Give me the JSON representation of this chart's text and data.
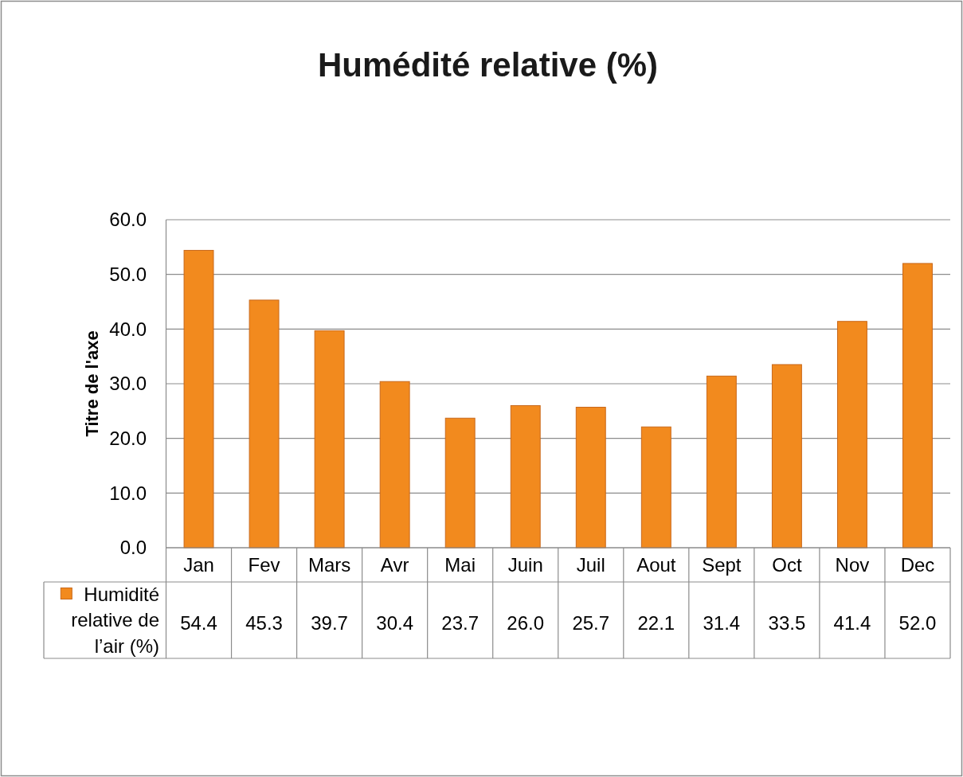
{
  "chart_data": {
    "type": "bar",
    "title": "Humédité relative (%)",
    "ylabel": "Titre de l'axe",
    "categories": [
      "Jan",
      "Fev",
      "Mars",
      "Avr",
      "Mai",
      "Juin",
      "Juil",
      "Aout",
      "Sept",
      "Oct",
      "Nov",
      "Dec"
    ],
    "series": [
      {
        "name": "Humidité relative de l’air (%)",
        "color": "#f28a1e",
        "values": [
          54.4,
          45.3,
          39.7,
          30.4,
          23.7,
          26.0,
          25.7,
          22.1,
          31.4,
          33.5,
          41.4,
          52.0
        ],
        "value_labels": [
          "54.4",
          "45.3",
          "39.7",
          "30.4",
          "23.7",
          "26.0",
          "25.7",
          "22.1",
          "31.4",
          "33.5",
          "41.4",
          "52.0"
        ]
      }
    ],
    "ylim": [
      0,
      60
    ],
    "yticks": [
      {
        "value": 0,
        "label": "0.0"
      },
      {
        "value": 10,
        "label": "10.0"
      },
      {
        "value": 20,
        "label": "20.0"
      },
      {
        "value": 30,
        "label": "30.0"
      },
      {
        "value": 40,
        "label": "40.0"
      },
      {
        "value": 50,
        "label": "50.0"
      },
      {
        "value": 60,
        "label": "60.0"
      }
    ],
    "grid": "y",
    "legend": "bottom left"
  }
}
